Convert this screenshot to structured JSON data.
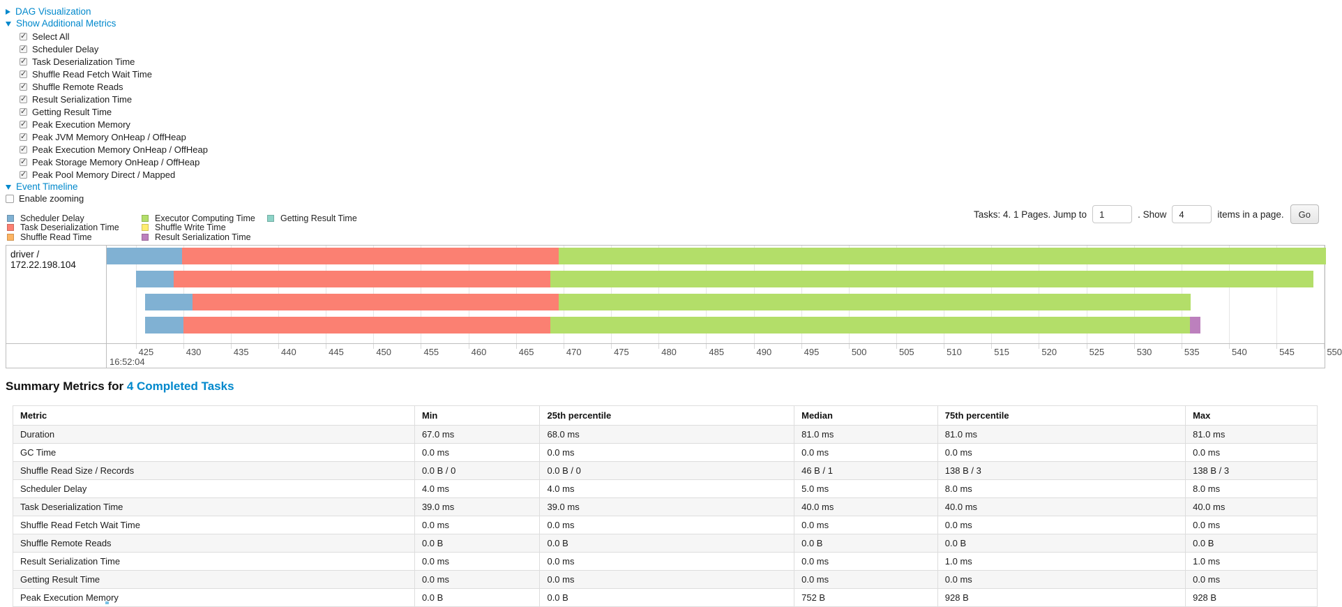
{
  "colors": {
    "link_blue": "#0088cc",
    "chart_border": "#bdbdbd",
    "gridline": "#e6e6e6",
    "table_stripe": "#f6f6f6"
  },
  "sections": {
    "dag_label": "DAG Visualization",
    "metrics_label": "Show Additional Metrics",
    "timeline_label": "Event Timeline",
    "enable_zooming_label": "Enable zooming"
  },
  "metrics_checkboxes": [
    "Select All",
    "Scheduler Delay",
    "Task Deserialization Time",
    "Shuffle Read Fetch Wait Time",
    "Shuffle Remote Reads",
    "Result Serialization Time",
    "Getting Result Time",
    "Peak Execution Memory",
    "Peak JVM Memory OnHeap / OffHeap",
    "Peak Execution Memory OnHeap / OffHeap",
    "Peak Storage Memory OnHeap / OffHeap",
    "Peak Pool Memory Direct / Mapped"
  ],
  "pagination": {
    "tasks_text": "Tasks: 4. 1 Pages. Jump to",
    "jump_value": "1",
    "show_label": ". Show",
    "show_value": "4",
    "items_text": "items in a page.",
    "go_label": "Go"
  },
  "chart_data": {
    "type": "timeline",
    "group_label": "driver / 172.22.198.104",
    "time_label": "16:52:04",
    "x_axis": {
      "min": 421.95,
      "max": 550.05,
      "ticks": [
        425,
        430,
        435,
        440,
        445,
        450,
        455,
        460,
        465,
        470,
        475,
        480,
        485,
        490,
        495,
        500,
        505,
        510,
        515,
        520,
        525,
        530,
        535,
        540,
        545,
        550
      ]
    },
    "segment_colors": {
      "scheduler_delay": "#80B1D3",
      "task_deserialization": "#FB8072",
      "shuffle_read": "#FDB462",
      "executor_computing": "#B3DE69",
      "shuffle_write": "#FFED6F",
      "result_serialization": "#BC80BD",
      "getting_result": "#8DD3C7"
    },
    "legend_columns": [
      [
        {
          "label": "Scheduler Delay",
          "key": "scheduler_delay"
        },
        {
          "label": "Task Deserialization Time",
          "key": "task_deserialization"
        },
        {
          "label": "Shuffle Read Time",
          "key": "shuffle_read"
        }
      ],
      [
        {
          "label": "Executor Computing Time",
          "key": "executor_computing"
        },
        {
          "label": "Shuffle Write Time",
          "key": "shuffle_write"
        },
        {
          "label": "Result Serialization Time",
          "key": "result_serialization"
        }
      ],
      [
        {
          "label": "Getting Result Time",
          "key": "getting_result"
        }
      ]
    ],
    "tasks": [
      {
        "segments": [
          {
            "type": "scheduler_delay",
            "start": 421.9,
            "end": 429.9
          },
          {
            "type": "task_deserialization",
            "start": 429.9,
            "end": 469.5
          },
          {
            "type": "executor_computing",
            "start": 469.5,
            "end": 550.2
          }
        ]
      },
      {
        "segments": [
          {
            "type": "scheduler_delay",
            "start": 425.0,
            "end": 429.0
          },
          {
            "type": "task_deserialization",
            "start": 429.0,
            "end": 468.6
          },
          {
            "type": "executor_computing",
            "start": 468.6,
            "end": 548.9
          }
        ]
      },
      {
        "segments": [
          {
            "type": "scheduler_delay",
            "start": 426.0,
            "end": 431.0
          },
          {
            "type": "task_deserialization",
            "start": 431.0,
            "end": 469.5
          },
          {
            "type": "executor_computing",
            "start": 469.5,
            "end": 536.0
          }
        ]
      },
      {
        "segments": [
          {
            "type": "scheduler_delay",
            "start": 426.0,
            "end": 430.0
          },
          {
            "type": "task_deserialization",
            "start": 430.0,
            "end": 468.6
          },
          {
            "type": "executor_computing",
            "start": 468.6,
            "end": 535.9
          },
          {
            "type": "result_serialization",
            "start": 535.9,
            "end": 537.0
          }
        ]
      }
    ]
  },
  "summary": {
    "title_prefix": "Summary Metrics for ",
    "title_link": "4 Completed Tasks",
    "table": {
      "headers": [
        "Metric",
        "Min",
        "25th percentile",
        "Median",
        "75th percentile",
        "Max"
      ],
      "col_widths_pct": [
        30.8,
        9.6,
        19.5,
        11.0,
        19.0,
        10.1
      ],
      "rows": [
        {
          "metric": "Duration",
          "values": [
            "67.0 ms",
            "68.0 ms",
            "81.0 ms",
            "81.0 ms",
            "81.0 ms"
          ]
        },
        {
          "metric": "GC Time",
          "values": [
            "0.0 ms",
            "0.0 ms",
            "0.0 ms",
            "0.0 ms",
            "0.0 ms"
          ]
        },
        {
          "metric": "Shuffle Read Size / Records",
          "values": [
            "0.0 B / 0",
            "0.0 B / 0",
            "46 B / 1",
            "138 B / 3",
            "138 B / 3"
          ]
        },
        {
          "metric": "Scheduler Delay",
          "values": [
            "4.0 ms",
            "4.0 ms",
            "5.0 ms",
            "8.0 ms",
            "8.0 ms"
          ]
        },
        {
          "metric": "Task Deserialization Time",
          "values": [
            "39.0 ms",
            "39.0 ms",
            "40.0 ms",
            "40.0 ms",
            "40.0 ms"
          ]
        },
        {
          "metric": "Shuffle Read Fetch Wait Time",
          "values": [
            "0.0 ms",
            "0.0 ms",
            "0.0 ms",
            "0.0 ms",
            "0.0 ms"
          ]
        },
        {
          "metric": "Shuffle Remote Reads",
          "values": [
            "0.0 B",
            "0.0 B",
            "0.0 B",
            "0.0 B",
            "0.0 B"
          ]
        },
        {
          "metric": "Result Serialization Time",
          "values": [
            "0.0 ms",
            "0.0 ms",
            "0.0 ms",
            "1.0 ms",
            "1.0 ms"
          ]
        },
        {
          "metric": "Getting Result Time",
          "values": [
            "0.0 ms",
            "0.0 ms",
            "0.0 ms",
            "0.0 ms",
            "0.0 ms"
          ]
        },
        {
          "metric": "Peak Execution Memory",
          "values": [
            "0.0 B",
            "0.0 B",
            "752 B",
            "928 B",
            "928 B"
          ]
        }
      ]
    }
  }
}
